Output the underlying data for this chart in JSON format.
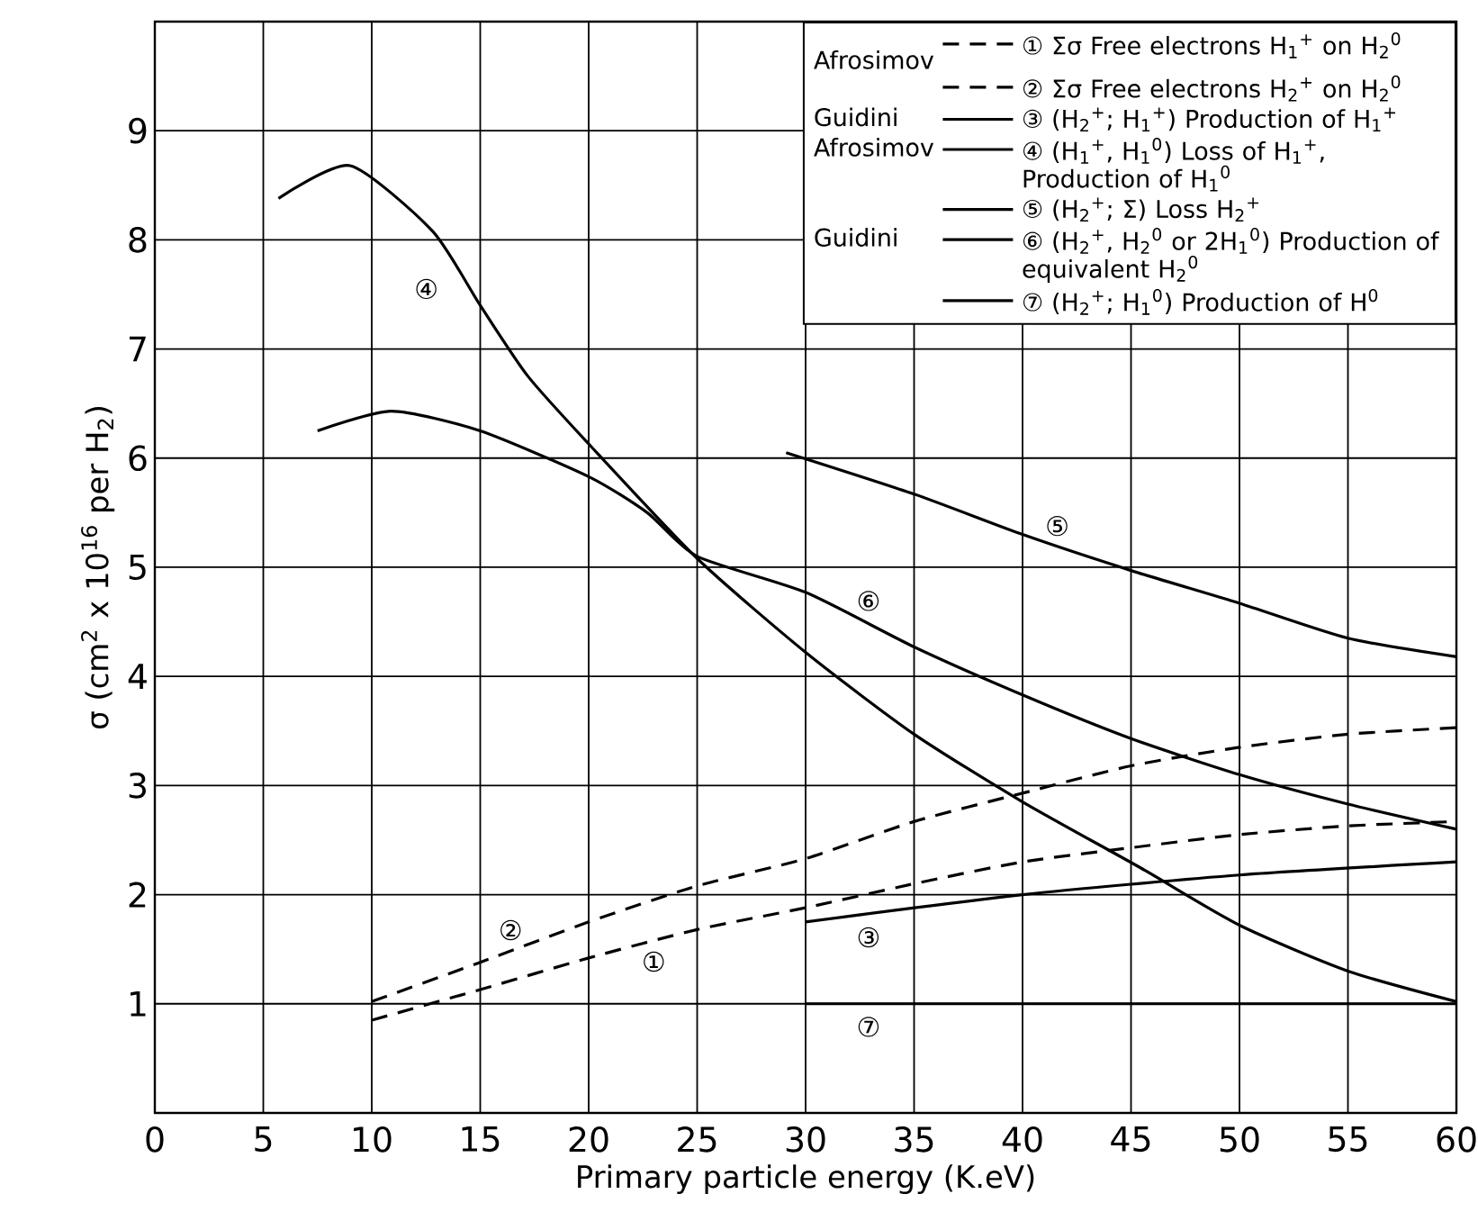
{
  "chart_data": {
    "type": "line",
    "xlabel": "Primary particle energy (K.eV)",
    "ylabel": "σ (cm$^{2}$ x 10$^{16}$ per H$_{2}$)",
    "xlim": [
      0,
      60
    ],
    "ylim": [
      0,
      10
    ],
    "xticks": [
      0,
      5,
      10,
      15,
      20,
      25,
      30,
      35,
      40,
      45,
      50,
      55,
      60
    ],
    "yticks": [
      1,
      2,
      3,
      4,
      5,
      6,
      7,
      8,
      9
    ],
    "grid": true,
    "legend": "top right",
    "series": [
      {
        "name": "① Σσ Free electrons H$_{1}$$^{+}$ on H$_{2}$$^{0}$",
        "color": "#000000",
        "line_style": "dashed",
        "x": [
          10,
          15,
          20,
          25,
          30,
          35,
          40,
          45,
          50,
          55,
          60
        ],
        "values": [
          0.85,
          1.13,
          1.42,
          1.68,
          1.88,
          2.1,
          2.3,
          2.43,
          2.55,
          2.63,
          2.67
        ]
      },
      {
        "name": "② Σσ Free electrons H$_{2}$$^{+}$ on H$_{2}$$^{0}$",
        "color": "#000000",
        "line_style": "dashed",
        "x": [
          10,
          15,
          20,
          25,
          30,
          35,
          40,
          45,
          50,
          55,
          60
        ],
        "values": [
          1.02,
          1.38,
          1.75,
          2.08,
          2.33,
          2.67,
          2.93,
          3.18,
          3.35,
          3.47,
          3.53
        ]
      },
      {
        "name": "③ (H$_{2}$$^{+}$; H$_{1}$$^{+}$) Production of H$_{1}$$^{+}$",
        "color": "#000000",
        "line_style": "solid",
        "x": [
          30,
          40,
          50,
          60
        ],
        "values": [
          1.75,
          2.0,
          2.18,
          2.3
        ]
      },
      {
        "name": "④ (H$_{1}$$^{+}$, H$_{1}$$^{0}$) Loss of H$_{1}$$^{+}$, Production of H$_{1}$$^{0}$",
        "color": "#000000",
        "line_style": "solid",
        "x": [
          5.7,
          9,
          12.8,
          15,
          17.2,
          20,
          25,
          30,
          35,
          40,
          45.4,
          50,
          55,
          60
        ],
        "values": [
          8.38,
          8.68,
          8.08,
          7.4,
          6.75,
          6.13,
          5.08,
          4.22,
          3.47,
          2.85,
          2.25,
          1.72,
          1.3,
          1.02
        ]
      },
      {
        "name": "⑤ (H$_{2}$$^{+}$; Σ) Loss H$_{2}$$^{+}$",
        "color": "#000000",
        "line_style": "solid",
        "x": [
          29.1,
          35,
          40,
          45,
          50,
          55,
          60
        ],
        "values": [
          6.05,
          5.67,
          5.3,
          4.97,
          4.67,
          4.35,
          4.18
        ]
      },
      {
        "name": "⑥ (H$_{2}$$^{+}$, H$_{2}$$^{0}$ or 2H$_{1}$$^{0}$) Production of equivalent H$_{2}$$^{0}$",
        "color": "#000000",
        "line_style": "solid",
        "x": [
          7.5,
          10.9,
          15,
          20,
          22.7,
          25,
          30,
          35,
          40,
          45,
          50,
          55,
          60
        ],
        "values": [
          6.25,
          6.43,
          6.25,
          5.83,
          5.5,
          5.1,
          4.77,
          4.27,
          3.83,
          3.43,
          3.1,
          2.83,
          2.6
        ]
      },
      {
        "name": "⑦ (H$_{2}$$^{+}$; H$_{1}$$^{0}$) Production of H$^{0}$",
        "color": "#000000",
        "line_style": "solid",
        "x": [
          30,
          60
        ],
        "values": [
          1.0,
          1.0
        ]
      }
    ],
    "annotations": [
      {
        "text": "①",
        "x": 23,
        "y": 1.58
      },
      {
        "text": "②",
        "x": 16.4,
        "y": 1.48
      },
      {
        "text": "③",
        "x": 32.9,
        "y": 1.82
      },
      {
        "text": "④",
        "x": 14.5,
        "y": 7.55
      },
      {
        "text": "⑤",
        "x": 41.6,
        "y": 5.2
      },
      {
        "text": "⑥",
        "x": 32.9,
        "y": 4.48
      },
      {
        "text": "⑦",
        "x": 32.9,
        "y": 1.0
      },
      "Afrosimov",
      "Guidini",
      "Afrosimov",
      "Guidini"
    ]
  }
}
